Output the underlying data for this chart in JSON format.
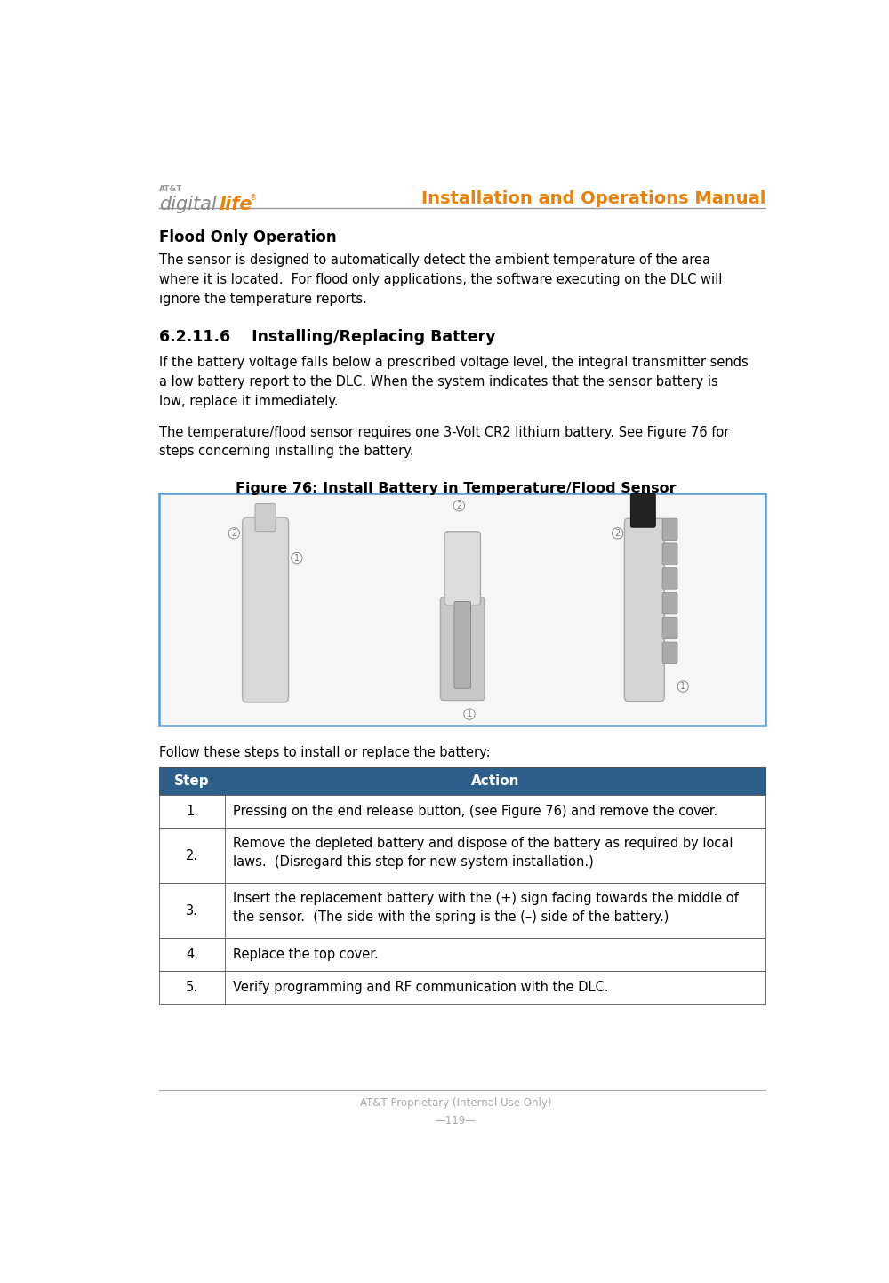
{
  "page_width": 10.0,
  "page_height": 14.43,
  "bg_color": "#ffffff",
  "header_title": "Installation and Operations Manual",
  "header_title_color": "#e8820c",
  "header_line_color": "#999999",
  "footer_proprietary": "AT&T Proprietary (Internal Use Only)",
  "footer_page": "—119—",
  "footer_text_color": "#aaaaaa",
  "section_title1": "Flood Only Operation",
  "section_body1_lines": [
    "The sensor is designed to automatically detect the ambient temperature of the area",
    "where it is located.  For flood only applications, the software executing on the DLC will",
    "ignore the temperature reports."
  ],
  "section_title2": "6.2.11.6    Installing/Replacing Battery",
  "section_body2a_lines": [
    "If the battery voltage falls below a prescribed voltage level, the integral transmitter sends",
    "a low battery report to the DLC. When the system indicates that the sensor battery is",
    "low, replace it immediately."
  ],
  "section_body2b_lines": [
    "The temperature/flood sensor requires one 3-Volt CR2 lithium battery. See Figure 76 for",
    "steps concerning installing the battery."
  ],
  "figure_caption": "Figure 76: Install Battery in Temperature/Flood Sensor",
  "figure_border_color": "#5b9bd5",
  "follow_text": "Follow these steps to install or replace the battery:",
  "table_header_bg": "#2e5f8a",
  "table_header_text_color": "#ffffff",
  "table_border_color": "#555555",
  "table_col1_header": "Step",
  "table_col2_header": "Action",
  "table_rows": [
    [
      "1.",
      "Pressing on the end release button, (see Figure 76) and remove the cover."
    ],
    [
      "2.",
      "Remove the depleted battery and dispose of the battery as required by local\nlaws.  (Disregard this step for new system installation.)"
    ],
    [
      "3.",
      "Insert the replacement battery with the (+) sign facing towards the middle of\nthe sensor.  (The side with the spring is the (–) side of the battery.)"
    ],
    [
      "4.",
      "Replace the top cover."
    ],
    [
      "5.",
      "Verify programming and RF communication with the DLC."
    ]
  ]
}
